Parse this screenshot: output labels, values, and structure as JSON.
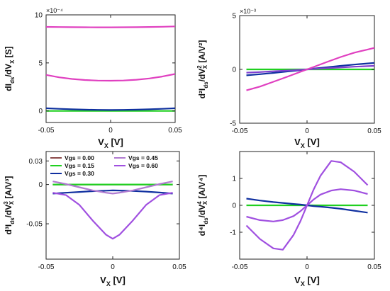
{
  "chart_data": [
    {
      "id": "p1",
      "type": "line",
      "ylabel": {
        "base": "dI",
        "b_sub": "ds",
        "mid": "/dV",
        "x_sub": "X",
        "sup": "",
        "unit": " [S]"
      },
      "xlabel": {
        "base": "V",
        "sub": "X",
        "unit": " [V]"
      },
      "exponent": "×10⁻⁴",
      "xlim": [
        -0.05,
        0.05
      ],
      "ylim": [
        -1.2,
        10
      ],
      "xticks": [
        -0.05,
        0,
        0.05
      ],
      "xtick_labels": [
        "-0.05",
        "0",
        "0.05"
      ],
      "yticks": [
        0,
        5,
        10
      ],
      "ytick_labels": [
        "0",
        "5",
        "10"
      ],
      "x": [
        -0.05,
        -0.04,
        -0.03,
        -0.02,
        -0.01,
        0,
        0.01,
        0.02,
        0.03,
        0.04,
        0.05
      ],
      "series": [
        {
          "color": "#20d020",
          "values": [
            0.0,
            0.0,
            0.0,
            0.0,
            0.0,
            0.0,
            0.0,
            0.0,
            0.0,
            0.0,
            0.0
          ]
        },
        {
          "color": "#1030a0",
          "values": [
            0.28,
            0.22,
            0.17,
            0.13,
            0.11,
            0.1,
            0.11,
            0.13,
            0.17,
            0.22,
            0.28
          ]
        },
        {
          "color": "#e040c0",
          "values": [
            3.75,
            3.5,
            3.33,
            3.22,
            3.16,
            3.15,
            3.17,
            3.25,
            3.38,
            3.58,
            3.85
          ]
        },
        {
          "color": "#e040c0",
          "values": [
            8.75,
            8.73,
            8.72,
            8.71,
            8.7,
            8.7,
            8.71,
            8.72,
            8.74,
            8.76,
            8.8
          ]
        }
      ]
    },
    {
      "id": "p2",
      "type": "line",
      "ylabel": {
        "base": "d²I",
        "b_sub": "ds",
        "mid": "/dV",
        "x_sub": "X",
        "sup": "2",
        "unit": " [A/V²]"
      },
      "xlabel": {
        "base": "V",
        "sub": "X",
        "unit": " [V]"
      },
      "exponent": "×10⁻³",
      "xlim": [
        -0.05,
        0.05
      ],
      "ylim": [
        -5,
        5
      ],
      "xticks": [
        -0.05,
        0,
        0.05
      ],
      "xtick_labels": [
        "-0.05",
        "0",
        "0.05"
      ],
      "yticks": [
        -5,
        0,
        5
      ],
      "ytick_labels": [
        "-5",
        "0",
        "5"
      ],
      "x": [
        -0.045,
        -0.035,
        -0.025,
        -0.015,
        -0.005,
        0.005,
        0.015,
        0.025,
        0.035,
        0.045,
        0.05
      ],
      "series": [
        {
          "color": "#20d020",
          "values": [
            0.0,
            0.0,
            0.0,
            0.0,
            0.0,
            0.0,
            0.0,
            0.0,
            0.0,
            0.0,
            0.0
          ]
        },
        {
          "color": "#1030a0",
          "values": [
            -0.55,
            -0.45,
            -0.33,
            -0.2,
            -0.07,
            0.07,
            0.2,
            0.33,
            0.45,
            0.55,
            0.6
          ]
        },
        {
          "color": "#8040d0",
          "values": [
            -0.3,
            -0.25,
            -0.18,
            -0.11,
            -0.04,
            0.04,
            0.11,
            0.18,
            0.25,
            0.3,
            0.33
          ]
        },
        {
          "color": "#e040c0",
          "values": [
            -1.95,
            -1.6,
            -1.15,
            -0.7,
            -0.23,
            0.23,
            0.7,
            1.15,
            1.55,
            1.85,
            2.0
          ]
        }
      ]
    },
    {
      "id": "p3",
      "type": "line",
      "ylabel": {
        "base": "d³I",
        "b_sub": "ds",
        "mid": "/dV",
        "x_sub": "X",
        "sup": "3",
        "unit": " [A/V³]"
      },
      "xlabel": {
        "base": "V",
        "sub": "X",
        "unit": " [V]"
      },
      "exponent": "",
      "xlim": [
        -0.05,
        0.05
      ],
      "ylim": [
        -0.095,
        0.042
      ],
      "xticks": [
        -0.05,
        0,
        0.05
      ],
      "xtick_labels": [
        "-0.05",
        "0",
        "0.05"
      ],
      "yticks": [
        0.03,
        0,
        -0.05
      ],
      "ytick_labels": [
        "0.03",
        "0",
        "-0.05"
      ],
      "x": [
        -0.045,
        -0.035,
        -0.025,
        -0.015,
        -0.005,
        0,
        0.005,
        0.015,
        0.025,
        0.035,
        0.045
      ],
      "series": [
        {
          "name": "Vgs = 0.00",
          "color": "#8b4a4a",
          "values": [
            0,
            0,
            0,
            0,
            0,
            0,
            0,
            0,
            0,
            0,
            0
          ]
        },
        {
          "name": "Vgs = 0.15",
          "color": "#20d020",
          "values": [
            0,
            0,
            0,
            0,
            0,
            0,
            0,
            0,
            0,
            0,
            0
          ]
        },
        {
          "name": "Vgs = 0.30",
          "color": "#1030a0",
          "values": [
            -0.0115,
            -0.0105,
            -0.0095,
            -0.0085,
            -0.0078,
            -0.0075,
            -0.0077,
            -0.0082,
            -0.009,
            -0.0102,
            -0.0115
          ]
        },
        {
          "name": "Vgs = 0.45",
          "color": "#b07ad0",
          "values": [
            0.004,
            0.0005,
            -0.0035,
            -0.0075,
            -0.0105,
            -0.0115,
            -0.0105,
            -0.0075,
            -0.0035,
            0.0005,
            0.004
          ]
        },
        {
          "name": "Vgs = 0.60",
          "color": "#a050e0",
          "values": [
            -0.0105,
            -0.0135,
            -0.026,
            -0.046,
            -0.064,
            -0.069,
            -0.064,
            -0.046,
            -0.026,
            -0.0135,
            -0.0105
          ]
        }
      ],
      "legend_position": "top-left"
    },
    {
      "id": "p4",
      "type": "line",
      "ylabel": {
        "base": "d⁴I",
        "b_sub": "ds",
        "mid": "/dV",
        "x_sub": "X",
        "sup": "4",
        "unit": " [A/V⁴]"
      },
      "xlabel": {
        "base": "V",
        "sub": "X",
        "unit": " [V]"
      },
      "exponent": "",
      "xlim": [
        -0.05,
        0.05
      ],
      "ylim": [
        -2.0,
        2.0
      ],
      "xticks": [
        -0.05,
        0,
        0.05
      ],
      "xtick_labels": [
        "-0.05",
        "0",
        "0.05"
      ],
      "yticks": [
        1,
        0,
        -1
      ],
      "ytick_labels": [
        "1",
        "0",
        "-1"
      ],
      "x": [
        -0.045,
        -0.035,
        -0.025,
        -0.018,
        -0.01,
        -0.005,
        0,
        0.005,
        0.01,
        0.018,
        0.025,
        0.035,
        0.045
      ],
      "series": [
        {
          "color": "#20d020",
          "values": [
            0,
            0,
            0,
            0,
            0,
            0,
            0,
            0,
            0,
            0,
            0,
            0,
            0
          ]
        },
        {
          "color": "#1030a0",
          "values": [
            0.25,
            0.18,
            0.12,
            0.09,
            0.05,
            0.03,
            0,
            -0.03,
            -0.05,
            -0.09,
            -0.13,
            -0.2,
            -0.27
          ]
        },
        {
          "color": "#a050e0",
          "values": [
            -0.42,
            -0.55,
            -0.6,
            -0.55,
            -0.4,
            -0.22,
            0,
            0.22,
            0.4,
            0.55,
            0.6,
            0.55,
            0.42
          ]
        },
        {
          "color": "#a050e0",
          "values": [
            -0.75,
            -1.25,
            -1.6,
            -1.65,
            -1.1,
            -0.6,
            0,
            0.6,
            1.1,
            1.65,
            1.6,
            1.25,
            0.75
          ]
        }
      ]
    }
  ]
}
